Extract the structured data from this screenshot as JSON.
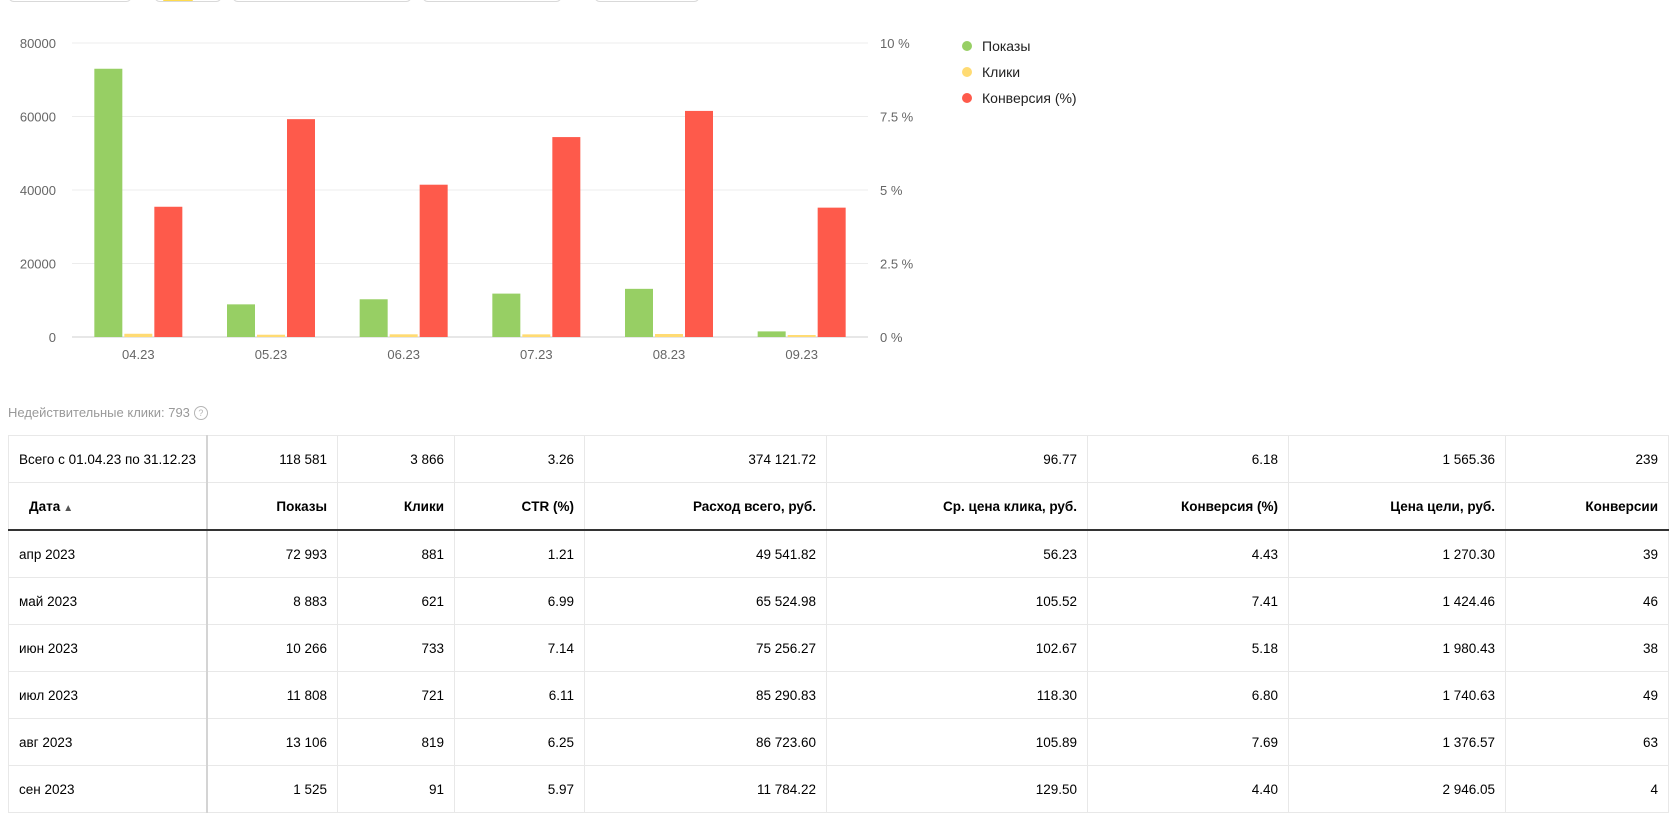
{
  "chart_data": {
    "type": "bar",
    "categories": [
      "04.23",
      "05.23",
      "06.23",
      "07.23",
      "08.23",
      "09.23"
    ],
    "series": [
      {
        "name": "Показы",
        "color": "#97cf64",
        "axis": "left",
        "values": [
          72993,
          8883,
          10266,
          11808,
          13106,
          1525
        ]
      },
      {
        "name": "Клики",
        "color": "#ffdb73",
        "axis": "left",
        "values": [
          881,
          621,
          733,
          721,
          819,
          91
        ]
      },
      {
        "name": "Конверсия (%)",
        "color": "#fe5a4b",
        "axis": "right",
        "values": [
          4.43,
          7.41,
          5.18,
          6.8,
          7.69,
          4.4
        ]
      }
    ],
    "left_axis": {
      "ticks": [
        "0",
        "20000",
        "40000",
        "60000",
        "80000"
      ],
      "ylim": [
        0,
        80000
      ]
    },
    "right_axis": {
      "ticks": [
        "0 %",
        "2.5 %",
        "5 %",
        "7.5 %",
        "10 %"
      ],
      "ylim": [
        0,
        10
      ]
    },
    "grid": true,
    "legend_position": "top-right"
  },
  "legend": [
    {
      "label": "Показы",
      "color": "#97cf64"
    },
    {
      "label": "Клики",
      "color": "#ffdb73"
    },
    {
      "label": "Конверсия (%)",
      "color": "#fe5a4b"
    }
  ],
  "invalid_clicks": "Недействительные клики: 793",
  "table": {
    "total": [
      "Всего с 01.04.23 по 31.12.23",
      "118 581",
      "3 866",
      "3.26",
      "374 121.72",
      "96.77",
      "6.18",
      "1 565.36",
      "239"
    ],
    "headers": [
      "Дата",
      "Показы",
      "Клики",
      "CTR (%)",
      "Расход всего, руб.",
      "Ср. цена клика, руб.",
      "Конверсия (%)",
      "Цена цели, руб.",
      "Конверсии"
    ],
    "sort_arrow": "▲",
    "rows": [
      [
        "апр 2023",
        "72 993",
        "881",
        "1.21",
        "49 541.82",
        "56.23",
        "4.43",
        "1 270.30",
        "39"
      ],
      [
        "май 2023",
        "8 883",
        "621",
        "6.99",
        "65 524.98",
        "105.52",
        "7.41",
        "1 424.46",
        "46"
      ],
      [
        "июн 2023",
        "10 266",
        "733",
        "7.14",
        "75 256.27",
        "102.67",
        "5.18",
        "1 980.43",
        "38"
      ],
      [
        "июл 2023",
        "11 808",
        "721",
        "6.11",
        "85 290.83",
        "118.30",
        "6.80",
        "1 740.63",
        "49"
      ],
      [
        "авг 2023",
        "13 106",
        "819",
        "6.25",
        "86 723.60",
        "105.89",
        "7.69",
        "1 376.57",
        "63"
      ],
      [
        "сен 2023",
        "1 525",
        "91",
        "5.97",
        "11 784.22",
        "129.50",
        "4.40",
        "2 946.05",
        "4"
      ]
    ]
  }
}
